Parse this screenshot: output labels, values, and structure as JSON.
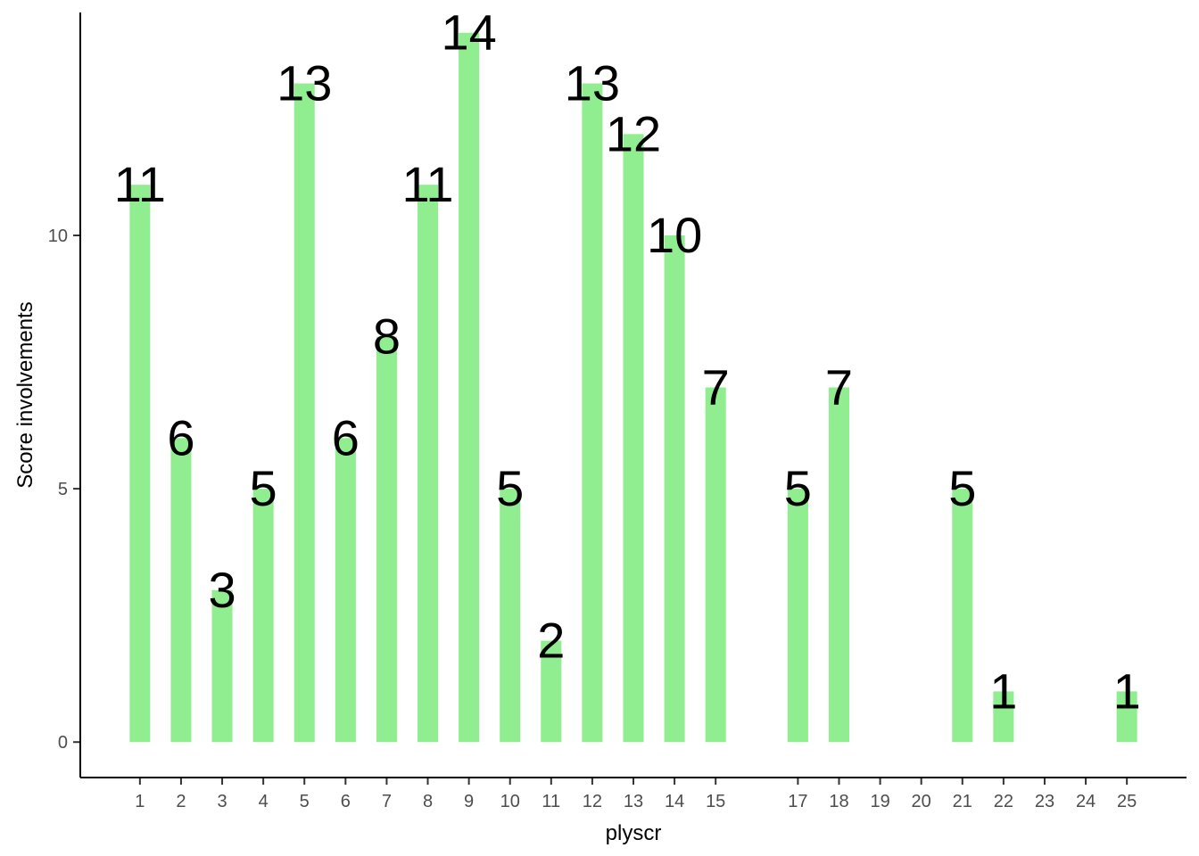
{
  "chart_data": {
    "type": "bar",
    "xlabel": "plyscr",
    "ylabel": "Score involvements",
    "categories": [
      "1",
      "2",
      "3",
      "4",
      "5",
      "6",
      "7",
      "8",
      "9",
      "10",
      "11",
      "12",
      "13",
      "14",
      "15",
      "17",
      "18",
      "19",
      "20",
      "21",
      "22",
      "23",
      "24",
      "25"
    ],
    "x": [
      1,
      2,
      3,
      4,
      5,
      6,
      7,
      8,
      9,
      10,
      11,
      12,
      13,
      14,
      15,
      17,
      18,
      19,
      20,
      21,
      22,
      23,
      24,
      25
    ],
    "values": [
      11,
      6,
      3,
      5,
      13,
      6,
      8,
      11,
      14,
      5,
      2,
      13,
      12,
      10,
      7,
      5,
      7,
      null,
      null,
      5,
      1,
      null,
      null,
      1
    ],
    "ylim": [
      -0.7,
      14.4
    ],
    "xlim": [
      -0.45,
      26.45
    ],
    "yticks": [
      0,
      5,
      10
    ],
    "grid": false,
    "legend": "none",
    "bar_color": "#90EE90"
  }
}
